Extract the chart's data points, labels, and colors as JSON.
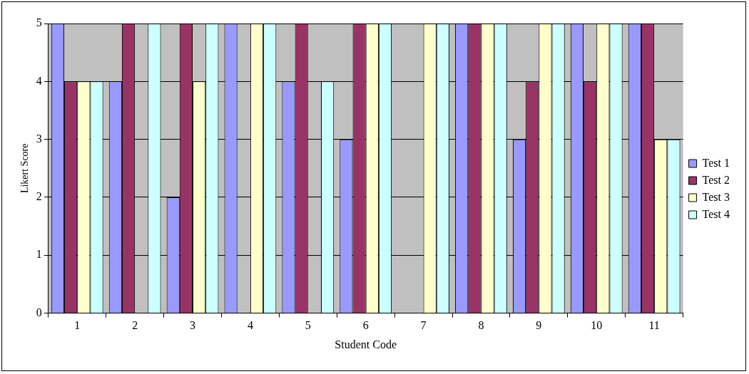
{
  "chart_data": {
    "type": "bar",
    "xlabel": "Student Code",
    "ylabel": "Likert Score",
    "categories": [
      "1",
      "2",
      "3",
      "4",
      "5",
      "6",
      "7",
      "8",
      "9",
      "10",
      "11"
    ],
    "series": [
      {
        "name": "Test 1",
        "color": "#9999ff",
        "values": [
          5,
          4,
          2,
          5,
          4,
          3,
          null,
          5,
          3,
          5,
          5
        ]
      },
      {
        "name": "Test 2",
        "color": "#993366",
        "values": [
          4,
          5,
          5,
          null,
          5,
          5,
          null,
          5,
          4,
          4,
          5
        ]
      },
      {
        "name": "Test 3",
        "color": "#ffffcc",
        "values": [
          4,
          null,
          4,
          5,
          null,
          5,
          5,
          5,
          5,
          5,
          3
        ]
      },
      {
        "name": "Test 4",
        "color": "#ccffff",
        "values": [
          4,
          5,
          5,
          5,
          4,
          5,
          5,
          5,
          5,
          5,
          3
        ]
      }
    ],
    "ylim": [
      0,
      5
    ],
    "yticks": [
      0,
      1,
      2,
      3,
      4,
      5
    ],
    "grid": "y",
    "legend": "right"
  }
}
